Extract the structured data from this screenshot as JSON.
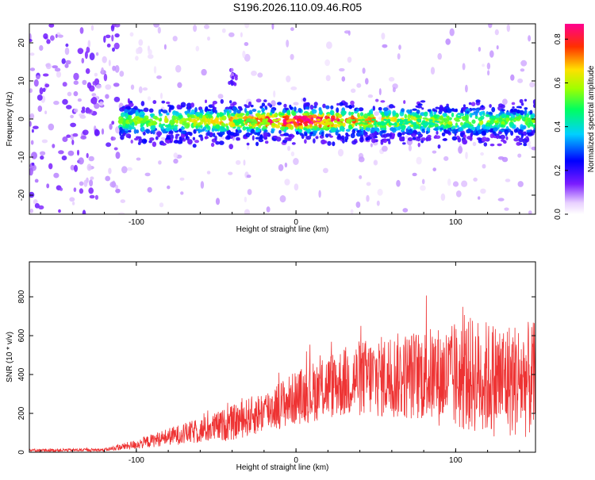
{
  "title": "S196.2026.110.09.46.R05",
  "chart_data": [
    {
      "type": "heatmap",
      "xlabel": "Height of straight line (km)",
      "ylabel": "Frequency (Hz)",
      "xlim": [
        -167,
        150
      ],
      "ylim": [
        -25,
        25
      ],
      "xticks": [
        -100,
        0,
        100
      ],
      "yticks": [
        -20,
        -10,
        0,
        10,
        20
      ],
      "colorbar": {
        "label": "Normalized spectral amplitude",
        "range": [
          0.0,
          0.87
        ],
        "ticks": [
          "0.0",
          "0.2",
          "0.4",
          "0.6",
          "0.8"
        ]
      },
      "description_points": {
        "band_center_hz": 0,
        "band_halfwidth_hz": 4,
        "peak_height_km": 5,
        "peak_amplitude": 0.85,
        "noise_region_km": [
          -167,
          -110
        ]
      }
    },
    {
      "type": "line",
      "xlabel": "Height of straight line (km)",
      "ylabel": "SNR (10 * v/v)",
      "xlim": [
        -167,
        150
      ],
      "ylim": [
        0,
        980
      ],
      "xticks": [
        -100,
        0,
        100
      ],
      "yticks": [
        0,
        200,
        400,
        600,
        800
      ],
      "color": "#ee3333",
      "envelope": {
        "x": [
          -167,
          -120,
          -100,
          -80,
          -60,
          -40,
          -20,
          0,
          20,
          40,
          60,
          80,
          100,
          110,
          120,
          150
        ],
        "mean": [
          10,
          12,
          40,
          80,
          110,
          150,
          210,
          280,
          340,
          380,
          390,
          400,
          380,
          400,
          380,
          370
        ],
        "spread": [
          8,
          8,
          25,
          45,
          65,
          90,
          110,
          140,
          170,
          200,
          220,
          240,
          280,
          300,
          300,
          300
        ]
      }
    }
  ]
}
